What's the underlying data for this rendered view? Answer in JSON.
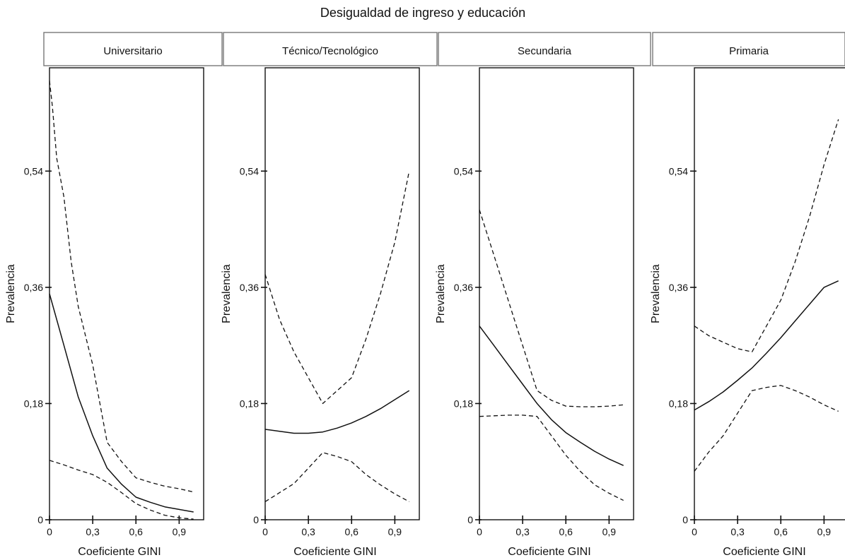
{
  "chart_data": {
    "title": "Desigualdad de ingreso y educación",
    "panels": [
      {
        "type": "line",
        "strip": "Universitario",
        "xlabel": "Coeficiente GINI",
        "ylabel": "Prevalencia",
        "xlim": [
          0,
          1.07
        ],
        "ylim": [
          0,
          0.7
        ],
        "xticks": [
          0,
          0.3,
          0.6,
          0.9
        ],
        "xtick_labels": [
          "0",
          "0,3",
          "0,6",
          "0,9"
        ],
        "yticks": [
          0,
          0.18,
          0.36,
          0.54
        ],
        "ytick_labels": [
          "0",
          "0,18",
          "0,36",
          "0,54"
        ],
        "series": [
          {
            "style": "solid",
            "x": [
              0,
              0.1,
              0.2,
              0.3,
              0.4,
              0.5,
              0.6,
              0.7,
              0.8,
              0.9,
              1.0
            ],
            "y": [
              0.35,
              0.27,
              0.19,
              0.13,
              0.08,
              0.055,
              0.035,
              0.027,
              0.02,
              0.016,
              0.012
            ]
          },
          {
            "style": "dashed",
            "x": [
              0,
              0.02,
              0.05,
              0.1,
              0.15,
              0.2,
              0.3,
              0.4,
              0.5,
              0.6,
              0.7,
              0.8,
              0.9,
              1.0
            ],
            "y": [
              0.68,
              0.64,
              0.56,
              0.5,
              0.4,
              0.33,
              0.24,
              0.12,
              0.09,
              0.065,
              0.058,
              0.052,
              0.048,
              0.043
            ]
          },
          {
            "style": "dashed",
            "x": [
              0,
              0.1,
              0.2,
              0.3,
              0.4,
              0.5,
              0.6,
              0.7,
              0.8,
              0.9,
              1.0
            ],
            "y": [
              0.092,
              0.085,
              0.077,
              0.07,
              0.058,
              0.042,
              0.025,
              0.015,
              0.007,
              0.003,
              0.001
            ]
          }
        ]
      },
      {
        "type": "line",
        "strip": "Técnico/Tecnológico",
        "xlabel": "Coeficiente GINI",
        "ylabel": "Prevalencia",
        "xlim": [
          0,
          1.07
        ],
        "ylim": [
          0,
          0.7
        ],
        "xticks": [
          0,
          0.3,
          0.6,
          0.9
        ],
        "xtick_labels": [
          "0",
          "0,3",
          "0,6",
          "0,9"
        ],
        "yticks": [
          0,
          0.18,
          0.36,
          0.54
        ],
        "yticks_labels_dummy": null,
        "ytick_labels": [
          "0",
          "0,18",
          "0,36",
          "0,54"
        ],
        "series": [
          {
            "style": "solid",
            "x": [
              0,
              0.1,
              0.2,
              0.3,
              0.4,
              0.5,
              0.6,
              0.7,
              0.8,
              0.9,
              1.0
            ],
            "y": [
              0.14,
              0.137,
              0.134,
              0.134,
              0.136,
              0.142,
              0.15,
              0.16,
              0.172,
              0.186,
              0.2
            ]
          },
          {
            "style": "dashed",
            "x": [
              0,
              0.1,
              0.2,
              0.3,
              0.4,
              0.5,
              0.6,
              0.7,
              0.8,
              0.9,
              1.0
            ],
            "y": [
              0.38,
              0.31,
              0.26,
              0.22,
              0.18,
              0.2,
              0.22,
              0.28,
              0.35,
              0.43,
              0.54
            ]
          },
          {
            "style": "dashed",
            "x": [
              0,
              0.1,
              0.2,
              0.3,
              0.4,
              0.5,
              0.6,
              0.7,
              0.8,
              0.9,
              1.0
            ],
            "y": [
              0.028,
              0.042,
              0.056,
              0.08,
              0.104,
              0.098,
              0.09,
              0.07,
              0.054,
              0.04,
              0.028
            ]
          }
        ]
      },
      {
        "type": "line",
        "strip": "Secundaria",
        "xlabel": "Coeficiente GINI",
        "ylabel": "Prevalencia",
        "xlim": [
          0,
          1.07
        ],
        "ylim": [
          0,
          0.7
        ],
        "xticks": [
          0,
          0.3,
          0.6,
          0.9
        ],
        "xtick_labels": [
          "0",
          "0,3",
          "0,6",
          "0,9"
        ],
        "yticks": [
          0,
          0.18,
          0.36,
          0.54
        ],
        "ytick_labels": [
          "0",
          "0,18",
          "0,36",
          "0,54"
        ],
        "series": [
          {
            "style": "solid",
            "x": [
              0,
              0.1,
              0.2,
              0.3,
              0.4,
              0.5,
              0.6,
              0.7,
              0.8,
              0.9,
              1.0
            ],
            "y": [
              0.3,
              0.27,
              0.24,
              0.21,
              0.18,
              0.155,
              0.135,
              0.12,
              0.106,
              0.094,
              0.084
            ]
          },
          {
            "style": "dashed",
            "x": [
              0,
              0.1,
              0.2,
              0.3,
              0.4,
              0.5,
              0.6,
              0.7,
              0.8,
              0.9,
              1.0
            ],
            "y": [
              0.48,
              0.41,
              0.34,
              0.27,
              0.2,
              0.185,
              0.176,
              0.175,
              0.175,
              0.176,
              0.178
            ]
          },
          {
            "style": "dashed",
            "x": [
              0,
              0.1,
              0.2,
              0.3,
              0.4,
              0.5,
              0.6,
              0.7,
              0.8,
              0.9,
              1.0
            ],
            "y": [
              0.16,
              0.161,
              0.162,
              0.162,
              0.16,
              0.13,
              0.1,
              0.075,
              0.054,
              0.041,
              0.03
            ]
          }
        ]
      },
      {
        "type": "line",
        "strip": "Primaria",
        "xlabel": "Coeficiente GINI",
        "ylabel": "Prevalencia",
        "xlim": [
          0,
          1.07
        ],
        "ylim": [
          0,
          0.7
        ],
        "xticks": [
          0,
          0.3,
          0.6,
          0.9
        ],
        "xtick_labels": [
          "0",
          "0,3",
          "0,6",
          "0,9"
        ],
        "yticks": [
          0,
          0.18,
          0.36,
          0.54
        ],
        "ytick_labels": [
          "0",
          "0,18",
          "0,36",
          "0,54"
        ],
        "series": [
          {
            "style": "solid",
            "x": [
              0,
              0.1,
              0.2,
              0.3,
              0.4,
              0.5,
              0.6,
              0.7,
              0.8,
              0.9,
              1.0
            ],
            "y": [
              0.17,
              0.183,
              0.198,
              0.216,
              0.235,
              0.258,
              0.282,
              0.308,
              0.334,
              0.36,
              0.37
            ]
          },
          {
            "style": "dashed",
            "x": [
              0,
              0.1,
              0.2,
              0.3,
              0.4,
              0.5,
              0.6,
              0.7,
              0.8,
              0.9,
              1.0
            ],
            "y": [
              0.3,
              0.285,
              0.275,
              0.265,
              0.26,
              0.3,
              0.34,
              0.4,
              0.47,
              0.55,
              0.62
            ]
          },
          {
            "style": "dashed",
            "x": [
              0,
              0.1,
              0.2,
              0.3,
              0.4,
              0.5,
              0.6,
              0.7,
              0.8,
              0.9,
              1.0
            ],
            "y": [
              0.075,
              0.105,
              0.13,
              0.165,
              0.2,
              0.205,
              0.208,
              0.2,
              0.19,
              0.178,
              0.168
            ]
          }
        ]
      }
    ]
  }
}
